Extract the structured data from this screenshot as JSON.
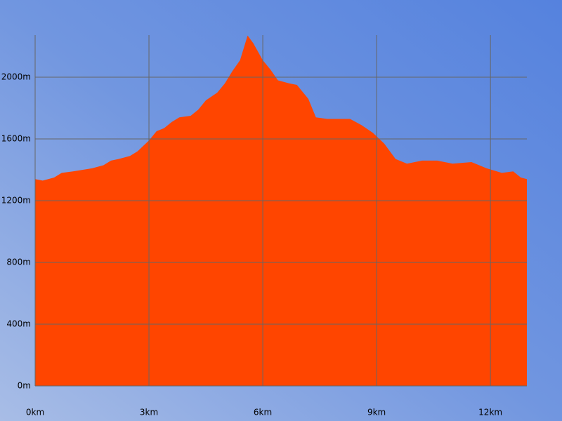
{
  "chart_data": {
    "type": "area",
    "x": [
      0,
      0.2,
      0.5,
      0.7,
      1.0,
      1.5,
      1.8,
      2.0,
      2.2,
      2.5,
      2.7,
      3.0,
      3.2,
      3.4,
      3.6,
      3.8,
      4.1,
      4.3,
      4.5,
      4.8,
      5.0,
      5.2,
      5.4,
      5.6,
      5.75,
      6.0,
      6.2,
      6.4,
      6.7,
      6.9,
      7.2,
      7.4,
      7.7,
      8.3,
      8.6,
      8.9,
      9.2,
      9.5,
      9.8,
      10.2,
      10.6,
      11.0,
      11.5,
      11.9,
      12.3,
      12.6,
      12.8,
      12.96
    ],
    "values": [
      1340,
      1330,
      1350,
      1380,
      1390,
      1410,
      1430,
      1460,
      1470,
      1490,
      1520,
      1590,
      1650,
      1670,
      1710,
      1740,
      1750,
      1790,
      1850,
      1900,
      1960,
      2040,
      2110,
      2270,
      2220,
      2110,
      2050,
      1980,
      1960,
      1950,
      1860,
      1740,
      1730,
      1730,
      1690,
      1640,
      1570,
      1470,
      1440,
      1460,
      1460,
      1440,
      1450,
      1410,
      1380,
      1390,
      1350,
      1340
    ],
    "color": "#ff4500",
    "xlim": [
      0,
      12.96
    ],
    "ylim": [
      0,
      2273
    ],
    "xticks": [
      {
        "value": 0,
        "label": "0km"
      },
      {
        "value": 3,
        "label": "3km"
      },
      {
        "value": 6,
        "label": "6km"
      },
      {
        "value": 9,
        "label": "9km"
      },
      {
        "value": 12,
        "label": "12km"
      }
    ],
    "yticks": [
      {
        "value": 0,
        "label": "0m"
      },
      {
        "value": 400,
        "label": "400m"
      },
      {
        "value": 800,
        "label": "800m"
      },
      {
        "value": 1200,
        "label": "1200m"
      },
      {
        "value": 1600,
        "label": "1600m"
      },
      {
        "value": 2000,
        "label": "2000m"
      }
    ],
    "grid": true
  }
}
